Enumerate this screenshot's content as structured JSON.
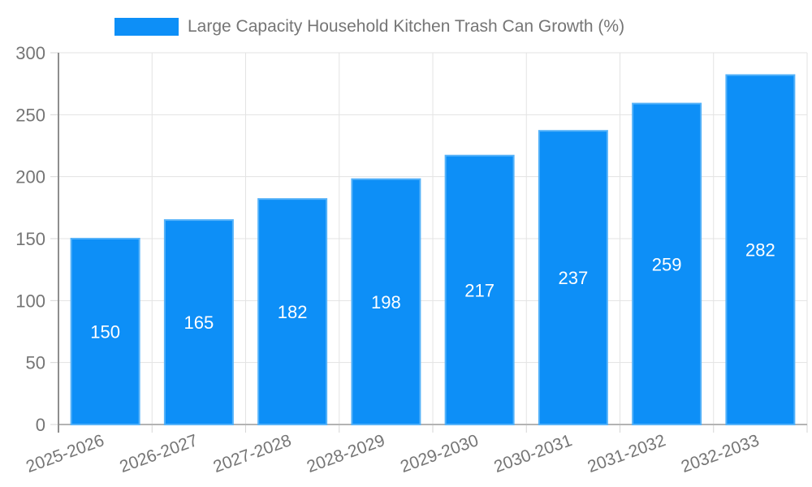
{
  "legend": {
    "label": "Large Capacity Household Kitchen Trash Can Growth (%)"
  },
  "chart_data": {
    "type": "bar",
    "title": "Large Capacity Household Kitchen Trash Can Growth (%)",
    "categories": [
      "2025-2026",
      "2026-2027",
      "2027-2028",
      "2028-2029",
      "2029-2030",
      "2030-2031",
      "2031-2032",
      "2032-2033"
    ],
    "values": [
      150,
      165,
      182,
      198,
      217,
      237,
      259,
      282
    ],
    "xlabel": "",
    "ylabel": "",
    "ylim": [
      0,
      300
    ],
    "yticks": [
      0,
      50,
      100,
      150,
      200,
      250,
      300
    ],
    "grid": true,
    "legend_position": "top",
    "value_label_position": "inside-center",
    "x_label_rotation_deg": -20
  },
  "colors": {
    "bar_fill": "#0d8ff7",
    "bar_border": "#55b2f9",
    "grid_line": "#e3e3e3",
    "axis_line": "#8e8e8e",
    "baseline": "#b3b3b3",
    "tick": "#d6d6d6",
    "text": "#757575",
    "value_label_text": "#ffffff",
    "background": "#ffffff"
  }
}
